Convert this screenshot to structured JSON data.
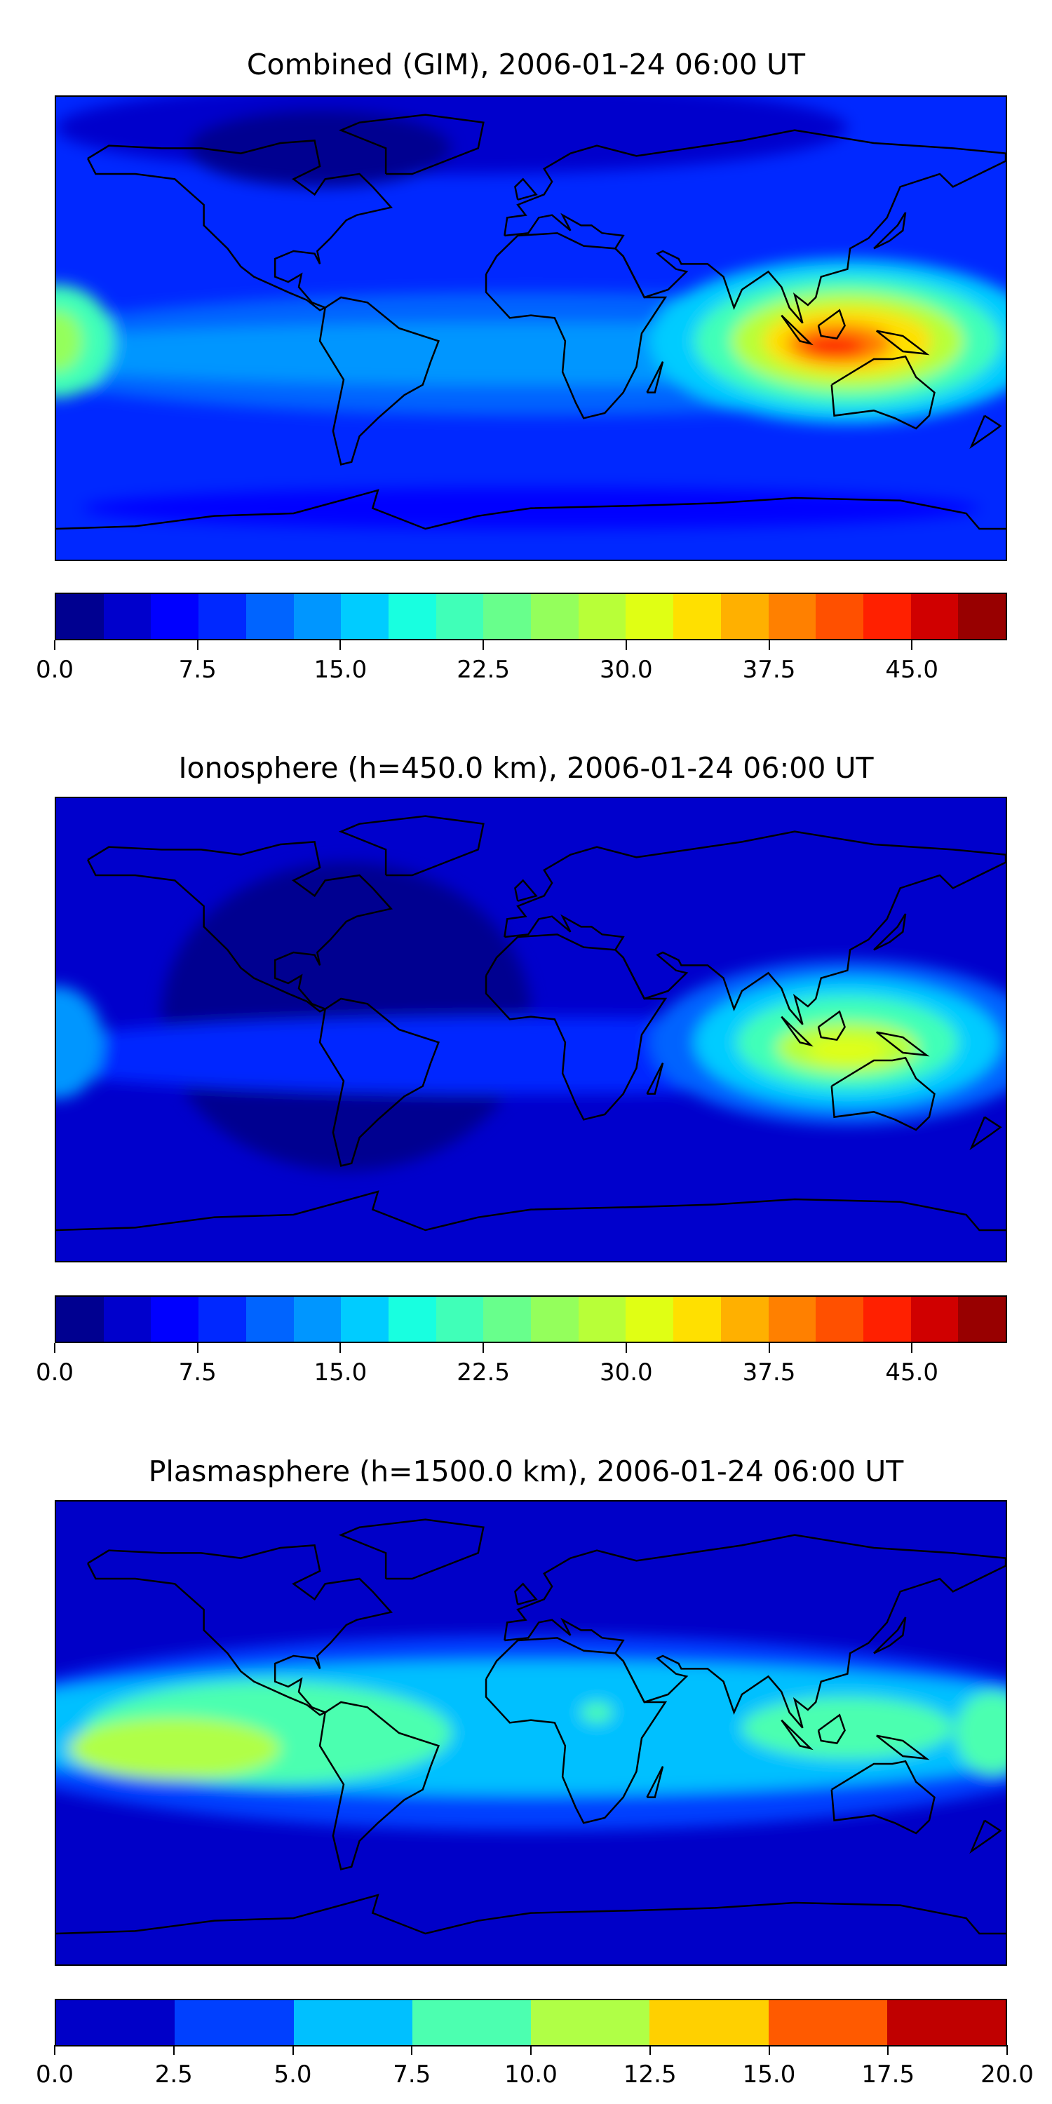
{
  "chart_data": [
    {
      "type": "heatmap",
      "title": "Combined (GIM), 2006-01-24 06:00 UT",
      "projection": "world map (lon -180..180, lat -90..90)",
      "colorbar": {
        "range": [
          0,
          50
        ],
        "levels_step": 2.5,
        "ticks": [
          "0.0",
          "7.5",
          "15.0",
          "22.5",
          "30.0",
          "37.5",
          "45.0"
        ],
        "tick_values": [
          0,
          7.5,
          15,
          22.5,
          30,
          37.5,
          45
        ],
        "colors": [
          "#000090",
          "#0000cc",
          "#0000ff",
          "#0028ff",
          "#0064ff",
          "#0096ff",
          "#00ccff",
          "#18ffe0",
          "#40ffb8",
          "#68ff8c",
          "#94ff5c",
          "#b8ff38",
          "#e0ff14",
          "#ffe000",
          "#ffb000",
          "#ff8000",
          "#ff5000",
          "#ff2000",
          "#d00000",
          "#980000"
        ]
      },
      "max_region": "Southeast Asia / Indonesia (~40-45)"
    },
    {
      "type": "heatmap",
      "title": "Ionosphere  (h=450.0 km), 2006-01-24 06:00 UT",
      "projection": "world map (lon -180..180, lat -90..90)",
      "colorbar": {
        "range": [
          0,
          50
        ],
        "levels_step": 2.5,
        "ticks": [
          "0.0",
          "7.5",
          "15.0",
          "22.5",
          "30.0",
          "37.5",
          "45.0"
        ],
        "tick_values": [
          0,
          7.5,
          15,
          22.5,
          30,
          37.5,
          45
        ],
        "colors": [
          "#000090",
          "#0000cc",
          "#0000ff",
          "#0028ff",
          "#0064ff",
          "#0096ff",
          "#00ccff",
          "#18ffe0",
          "#40ffb8",
          "#68ff8c",
          "#94ff5c",
          "#b8ff38",
          "#e0ff14",
          "#ffe000",
          "#ffb000",
          "#ff8000",
          "#ff5000",
          "#ff2000",
          "#d00000",
          "#980000"
        ]
      },
      "max_region": "Southeast Asia / Indonesia (~30-32.5)"
    },
    {
      "type": "heatmap",
      "title": "Plasmasphere (h=1500.0 km), 2006-01-24 06:00 UT",
      "projection": "world map (lon -180..180, lat -90..90)",
      "colorbar": {
        "range": [
          0,
          20
        ],
        "levels_step": 2.5,
        "ticks": [
          "0.0",
          "2.5",
          "5.0",
          "7.5",
          "10.0",
          "12.5",
          "15.0",
          "17.5",
          "20.0"
        ],
        "tick_values": [
          0,
          2.5,
          5,
          7.5,
          10,
          12.5,
          15,
          17.5,
          20
        ],
        "colors": [
          "#0000c8",
          "#0040ff",
          "#00c0ff",
          "#4cffb0",
          "#b0ff46",
          "#ffd000",
          "#ff5a00",
          "#c00000"
        ]
      },
      "max_region": "Eastern Pacific (~10-12.5)"
    }
  ]
}
